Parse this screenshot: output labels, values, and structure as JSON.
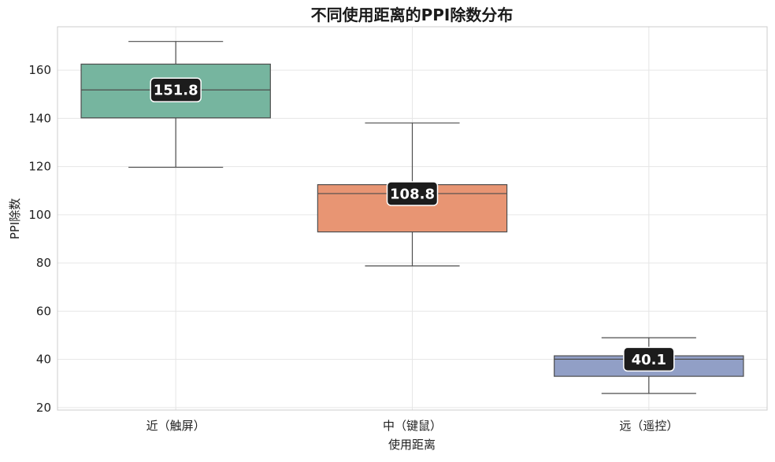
{
  "chart_data": {
    "type": "box",
    "title": "不同使用距离的PPI除数分布",
    "xlabel": "使用距离",
    "ylabel": "PPI除数",
    "ylim": [
      19,
      178
    ],
    "yticks": [
      20,
      40,
      60,
      80,
      100,
      120,
      140,
      160
    ],
    "grid": true,
    "categories": [
      "近（触屏）",
      "中（键鼠）",
      "远（遥控）"
    ],
    "boxes": [
      {
        "category": "近（触屏）",
        "whisker_low": 119.7,
        "q1": 140.2,
        "median": 151.8,
        "q3": 162.5,
        "whisker_high": 171.9,
        "median_label": "151.8",
        "color": "#76b59f"
      },
      {
        "category": "中（键鼠）",
        "whisker_low": 78.8,
        "q1": 92.9,
        "median": 108.8,
        "q3": 112.5,
        "whisker_high": 138.1,
        "median_label": "108.8",
        "color": "#e89573"
      },
      {
        "category": "远（遥控）",
        "whisker_low": 25.9,
        "q1": 33.0,
        "median": 40.1,
        "q3": 41.5,
        "whisker_high": 49.0,
        "median_label": "40.1",
        "color": "#919fc6"
      }
    ]
  }
}
